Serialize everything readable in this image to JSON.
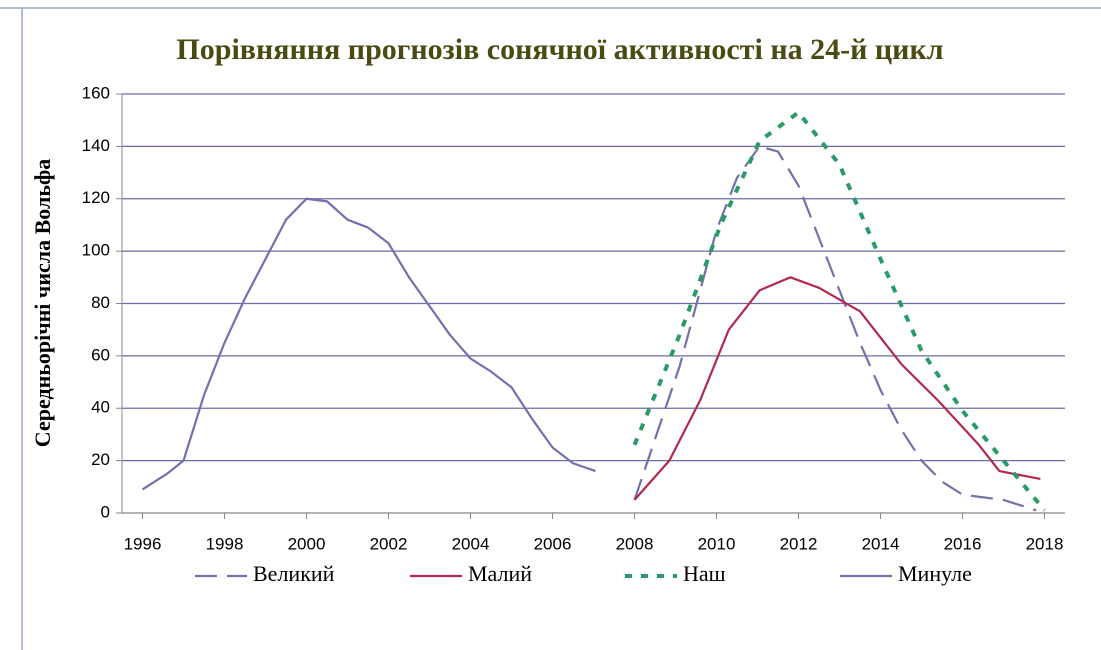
{
  "chart_data": {
    "type": "line",
    "title": "Порівняння прогнозів сонячної активності на 24-й цикл",
    "y_label": "Середньорічні числа Вольфа",
    "xlim": [
      1995.5,
      2018.5
    ],
    "xticks": [
      1996,
      1998,
      2000,
      2002,
      2004,
      2006,
      2008,
      2010,
      2012,
      2014,
      2016,
      2018
    ],
    "ylim": [
      0,
      160
    ],
    "yticks": [
      0,
      20,
      40,
      60,
      80,
      100,
      120,
      140,
      160
    ],
    "grid": true,
    "series": [
      {
        "name": "Великий",
        "color": "#7272a8",
        "dash": "dashed",
        "x": [
          2008,
          2009.1,
          2010,
          2010.5,
          2011.05,
          2011.5,
          2012,
          2012.5,
          2013,
          2013.5,
          2014,
          2014.5,
          2015,
          2015.5,
          2016,
          2017,
          2017.8
        ],
        "values": [
          5,
          56,
          108,
          128,
          140,
          138,
          125,
          105,
          85,
          65,
          47,
          32,
          20,
          12,
          7,
          5,
          1
        ]
      },
      {
        "name": "Малий",
        "color": "#b02a4e",
        "dash": "solid",
        "x": [
          2008,
          2008.85,
          2009.6,
          2010.3,
          2011.05,
          2011.8,
          2012.5,
          2013.5,
          2014.5,
          2015.4,
          2016.4,
          2016.9,
          2017.9
        ],
        "values": [
          5,
          20,
          43,
          70,
          85,
          90,
          86,
          77,
          57,
          43,
          26,
          16,
          13
        ]
      },
      {
        "name": "Наш",
        "color": "#2a9a68",
        "dash": "dotted",
        "x": [
          2008,
          2009.1,
          2010.1,
          2011.05,
          2012,
          2013,
          2014,
          2015,
          2016,
          2017,
          2018
        ],
        "values": [
          26,
          68,
          110,
          142,
          153,
          133,
          97,
          62,
          39,
          20,
          1
        ]
      },
      {
        "name": "Минуле",
        "color": "#7470ae",
        "dash": "solid",
        "x": [
          1996,
          1996.6,
          1997,
          1997.5,
          1998,
          1998.5,
          1999,
          1999.5,
          2000,
          2000.5,
          2001,
          2001.5,
          2002,
          2002.5,
          2003,
          2003.5,
          2004,
          2004.5,
          2005,
          2005.5,
          2006,
          2006.5,
          2007.05
        ],
        "values": [
          9,
          15,
          20,
          45,
          65,
          82,
          97,
          112,
          120,
          119,
          112,
          109,
          103,
          90,
          79,
          68,
          59,
          54,
          48,
          36,
          25,
          19,
          16
        ]
      }
    ]
  }
}
